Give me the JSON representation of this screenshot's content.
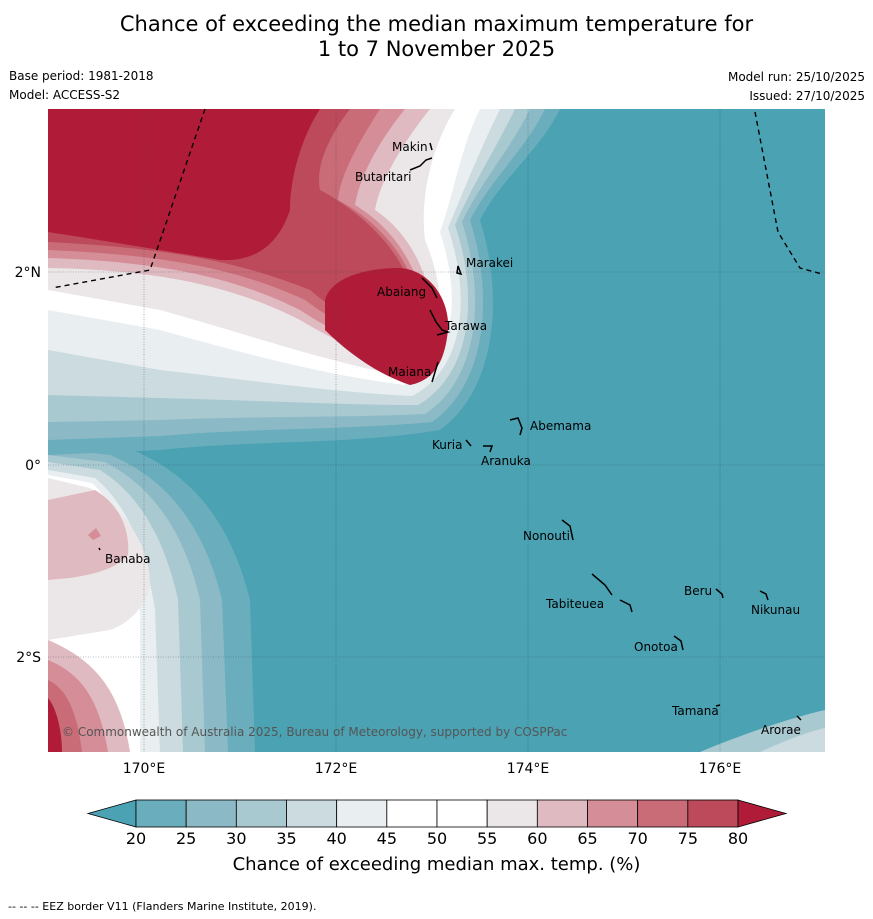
{
  "title_line1": "Chance of exceeding the median maximum temperature for",
  "title_line2": "1 to 7 November 2025",
  "base_period": "Base period: 1981-2018",
  "model": "Model: ACCESS-S2",
  "model_run": "Model run: 25/10/2025",
  "issued": "Issued: 27/10/2025",
  "copyright": "© Commonwealth of Australia 2025, Bureau of Meteorology, supported by COSPPac",
  "axes": {
    "lon_ticks": [
      "170°E",
      "172°E",
      "174°E",
      "176°E"
    ],
    "lat_ticks": [
      "2°N",
      "0°",
      "2°S"
    ]
  },
  "places": [
    "Makin",
    "Butaritari",
    "Marakei",
    "Abaiang",
    "Tarawa",
    "Maiana",
    "Abemama",
    "Kuria",
    "Aranuka",
    "Banaba",
    "Nonouti",
    "Beru",
    "Nikunau",
    "Tabiteuea",
    "Onotoa",
    "Tamana",
    "Arorae"
  ],
  "colorbar": {
    "ticks": [
      "20",
      "25",
      "30",
      "35",
      "40",
      "45",
      "50",
      "55",
      "60",
      "65",
      "70",
      "75",
      "80"
    ],
    "colors": [
      "#4aa2b3",
      "#6aaebd",
      "#8bbac6",
      "#a9c9d1",
      "#cbdbe0",
      "#e9eef0",
      "#ffffff",
      "#ffffff",
      "#ebe7e8",
      "#e0bac1",
      "#d58e97",
      "#c96c78",
      "#bc4a5a",
      "#b01c38"
    ],
    "label": "Chance of exceeding median max. temp. (%)"
  },
  "footnote": "-- -- -- EEZ border V11 (Flanders Marine Institute, 2019)."
}
